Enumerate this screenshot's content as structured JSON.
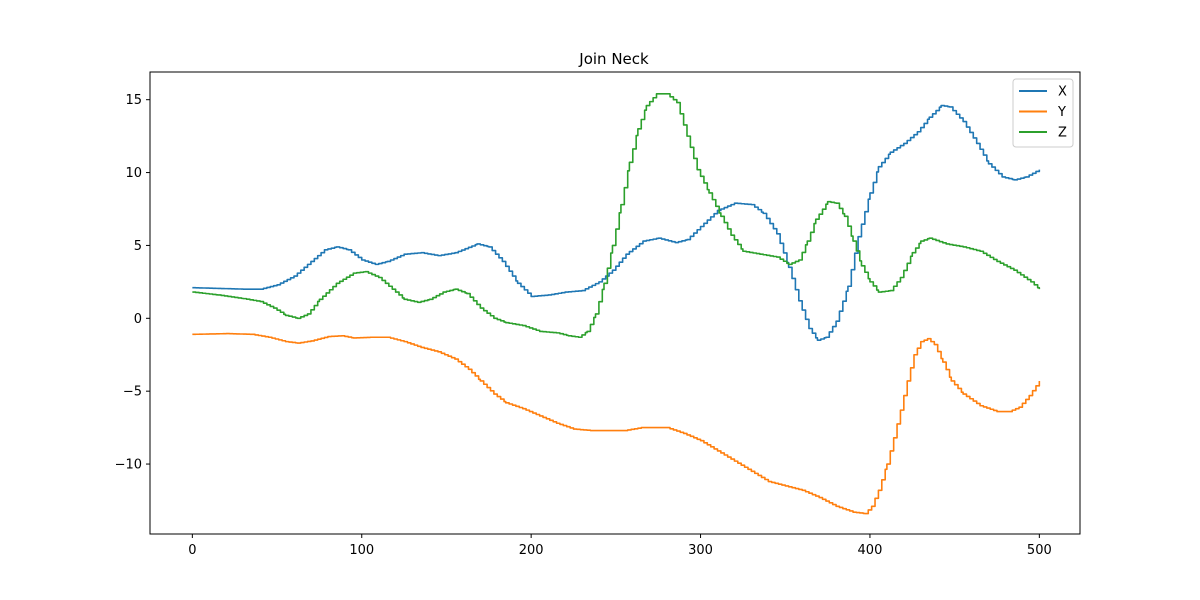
{
  "chart_data": {
    "type": "line",
    "title": "Join Neck",
    "xlabel": "",
    "ylabel": "",
    "xlim": [
      -25,
      524
    ],
    "ylim": [
      -14.8,
      16.9
    ],
    "xticks": [
      0,
      100,
      200,
      300,
      400,
      500
    ],
    "yticks": [
      -10,
      -5,
      0,
      5,
      10,
      15
    ],
    "ytick_labels": [
      "−10",
      "−5",
      "0",
      "5",
      "10",
      "15"
    ],
    "grid": false,
    "legend_position": "top-right",
    "series": [
      {
        "name": "X",
        "color": "#1f77b4",
        "points": [
          [
            0,
            2.1
          ],
          [
            15,
            2.05
          ],
          [
            30,
            2.0
          ],
          [
            40,
            2.0
          ],
          [
            50,
            2.3
          ],
          [
            60,
            2.9
          ],
          [
            70,
            3.9
          ],
          [
            78,
            4.7
          ],
          [
            85,
            4.9
          ],
          [
            92,
            4.7
          ],
          [
            100,
            4.0
          ],
          [
            108,
            3.7
          ],
          [
            115,
            3.9
          ],
          [
            125,
            4.4
          ],
          [
            135,
            4.5
          ],
          [
            145,
            4.3
          ],
          [
            155,
            4.5
          ],
          [
            168,
            5.1
          ],
          [
            175,
            4.9
          ],
          [
            183,
            3.9
          ],
          [
            192,
            2.4
          ],
          [
            200,
            1.5
          ],
          [
            210,
            1.6
          ],
          [
            220,
            1.8
          ],
          [
            230,
            1.9
          ],
          [
            240,
            2.5
          ],
          [
            248,
            3.3
          ],
          [
            256,
            4.4
          ],
          [
            266,
            5.3
          ],
          [
            275,
            5.5
          ],
          [
            285,
            5.2
          ],
          [
            292,
            5.4
          ],
          [
            300,
            6.3
          ],
          [
            310,
            7.4
          ],
          [
            320,
            7.9
          ],
          [
            330,
            7.8
          ],
          [
            337,
            7.2
          ],
          [
            345,
            5.8
          ],
          [
            352,
            3.5
          ],
          [
            358,
            1.2
          ],
          [
            364,
            -0.7
          ],
          [
            369,
            -1.5
          ],
          [
            374,
            -1.3
          ],
          [
            380,
            -0.2
          ],
          [
            387,
            2.2
          ],
          [
            393,
            5.6
          ],
          [
            400,
            8.6
          ],
          [
            405,
            10.4
          ],
          [
            412,
            11.4
          ],
          [
            420,
            12.0
          ],
          [
            428,
            12.8
          ],
          [
            435,
            13.8
          ],
          [
            442,
            14.6
          ],
          [
            447,
            14.5
          ],
          [
            455,
            13.5
          ],
          [
            463,
            12.0
          ],
          [
            470,
            10.6
          ],
          [
            478,
            9.7
          ],
          [
            485,
            9.5
          ],
          [
            492,
            9.7
          ],
          [
            500,
            10.2
          ]
        ]
      },
      {
        "name": "Y",
        "color": "#ff7f0e",
        "points": [
          [
            0,
            -1.1
          ],
          [
            20,
            -1.05
          ],
          [
            35,
            -1.1
          ],
          [
            45,
            -1.3
          ],
          [
            55,
            -1.6
          ],
          [
            62,
            -1.7
          ],
          [
            70,
            -1.55
          ],
          [
            80,
            -1.25
          ],
          [
            88,
            -1.2
          ],
          [
            95,
            -1.35
          ],
          [
            105,
            -1.3
          ],
          [
            115,
            -1.3
          ],
          [
            125,
            -1.6
          ],
          [
            135,
            -2.0
          ],
          [
            145,
            -2.3
          ],
          [
            155,
            -2.8
          ],
          [
            163,
            -3.5
          ],
          [
            170,
            -4.3
          ],
          [
            178,
            -5.2
          ],
          [
            185,
            -5.8
          ],
          [
            195,
            -6.2
          ],
          [
            205,
            -6.7
          ],
          [
            215,
            -7.2
          ],
          [
            225,
            -7.6
          ],
          [
            235,
            -7.7
          ],
          [
            245,
            -7.7
          ],
          [
            255,
            -7.7
          ],
          [
            265,
            -7.5
          ],
          [
            280,
            -7.5
          ],
          [
            290,
            -7.9
          ],
          [
            300,
            -8.4
          ],
          [
            310,
            -9.1
          ],
          [
            320,
            -9.8
          ],
          [
            330,
            -10.5
          ],
          [
            340,
            -11.2
          ],
          [
            350,
            -11.5
          ],
          [
            360,
            -11.8
          ],
          [
            370,
            -12.3
          ],
          [
            380,
            -12.9
          ],
          [
            390,
            -13.3
          ],
          [
            397,
            -13.4
          ],
          [
            401,
            -12.9
          ],
          [
            405,
            -11.8
          ],
          [
            410,
            -10.0
          ],
          [
            414,
            -8.2
          ],
          [
            418,
            -6.3
          ],
          [
            422,
            -4.3
          ],
          [
            426,
            -2.5
          ],
          [
            430,
            -1.6
          ],
          [
            434,
            -1.4
          ],
          [
            438,
            -1.8
          ],
          [
            443,
            -3.0
          ],
          [
            448,
            -4.3
          ],
          [
            455,
            -5.2
          ],
          [
            465,
            -6.0
          ],
          [
            475,
            -6.4
          ],
          [
            482,
            -6.4
          ],
          [
            488,
            -6.1
          ],
          [
            494,
            -5.3
          ],
          [
            500,
            -4.3
          ]
        ]
      },
      {
        "name": "Z",
        "color": "#2ca02c",
        "points": [
          [
            0,
            1.8
          ],
          [
            15,
            1.6
          ],
          [
            30,
            1.35
          ],
          [
            40,
            1.15
          ],
          [
            48,
            0.7
          ],
          [
            55,
            0.2
          ],
          [
            62,
            0.0
          ],
          [
            68,
            0.3
          ],
          [
            75,
            1.3
          ],
          [
            85,
            2.4
          ],
          [
            95,
            3.1
          ],
          [
            102,
            3.2
          ],
          [
            110,
            2.8
          ],
          [
            118,
            2.0
          ],
          [
            125,
            1.3
          ],
          [
            133,
            1.1
          ],
          [
            140,
            1.3
          ],
          [
            148,
            1.8
          ],
          [
            155,
            2.0
          ],
          [
            162,
            1.7
          ],
          [
            170,
            0.7
          ],
          [
            178,
            0.0
          ],
          [
            185,
            -0.3
          ],
          [
            195,
            -0.5
          ],
          [
            205,
            -0.9
          ],
          [
            215,
            -1.0
          ],
          [
            222,
            -1.2
          ],
          [
            228,
            -1.3
          ],
          [
            233,
            -0.9
          ],
          [
            238,
            0.3
          ],
          [
            243,
            2.4
          ],
          [
            248,
            5.0
          ],
          [
            253,
            7.8
          ],
          [
            258,
            10.7
          ],
          [
            263,
            13.0
          ],
          [
            268,
            14.6
          ],
          [
            274,
            15.4
          ],
          [
            280,
            15.4
          ],
          [
            286,
            14.8
          ],
          [
            292,
            12.5
          ],
          [
            298,
            10.2
          ],
          [
            305,
            8.6
          ],
          [
            312,
            7.0
          ],
          [
            318,
            5.7
          ],
          [
            325,
            4.6
          ],
          [
            335,
            4.4
          ],
          [
            345,
            4.2
          ],
          [
            352,
            3.7
          ],
          [
            358,
            4.0
          ],
          [
            363,
            5.3
          ],
          [
            368,
            6.8
          ],
          [
            375,
            8.0
          ],
          [
            380,
            7.9
          ],
          [
            385,
            7.0
          ],
          [
            390,
            5.3
          ],
          [
            395,
            3.6
          ],
          [
            400,
            2.5
          ],
          [
            405,
            1.8
          ],
          [
            412,
            1.9
          ],
          [
            418,
            2.8
          ],
          [
            425,
            4.5
          ],
          [
            430,
            5.3
          ],
          [
            435,
            5.5
          ],
          [
            445,
            5.1
          ],
          [
            455,
            4.9
          ],
          [
            465,
            4.6
          ],
          [
            475,
            3.9
          ],
          [
            485,
            3.3
          ],
          [
            495,
            2.5
          ],
          [
            500,
            2.0
          ]
        ]
      }
    ]
  }
}
